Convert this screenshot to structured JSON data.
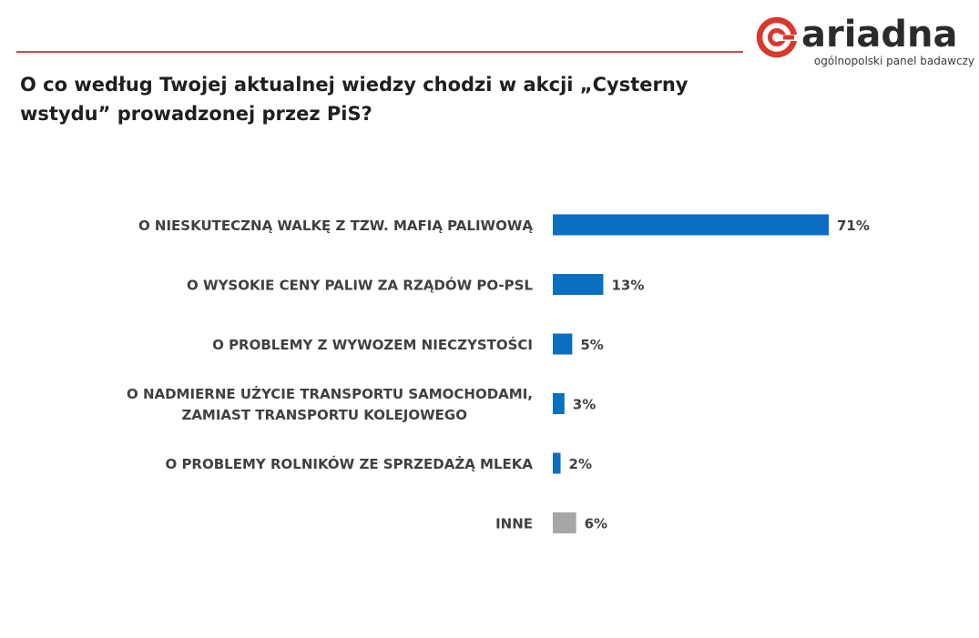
{
  "brand": {
    "name": "ariadna",
    "tagline": "ogólnopolski panel badawczy",
    "accent_color": "#d9382c",
    "rule_color": "#c0504d"
  },
  "title": "O co według Twojej aktualnej wiedzy chodzi w akcji „Cysterny wstydu” prowadzonej przez PiS?",
  "chart_data": {
    "type": "bar",
    "orientation": "horizontal",
    "title": "O co według Twojej aktualnej wiedzy chodzi w akcji „Cysterny wstydu” prowadzonej przez PiS?",
    "xlabel": "",
    "ylabel": "",
    "xlim": [
      0,
      100
    ],
    "unit": "%",
    "categories": [
      [
        "O NIESKUTECZNĄ WALKĘ Z TZW. MAFIĄ PALIWOWĄ"
      ],
      [
        "O WYSOKIE CENY PALIW ZA RZĄDÓW PO-PSL"
      ],
      [
        "O PROBLEMY Z WYWOZEM NIECZYSTOŚCI"
      ],
      [
        "O NADMIERNE UŻYCIE TRANSPORTU SAMOCHODAMI,",
        "ZAMIAST TRANSPORTU KOLEJOWEGO"
      ],
      [
        "O PROBLEMY ROLNIKÓW ZE SPRZEDAŻĄ MLEKA"
      ],
      [
        "INNE"
      ]
    ],
    "values": [
      71,
      13,
      5,
      3,
      2,
      6
    ],
    "value_labels": [
      "71%",
      "13%",
      "5%",
      "3%",
      "2%",
      "6%"
    ],
    "colors": [
      "#0a6fc2",
      "#0a6fc2",
      "#0a6fc2",
      "#0a6fc2",
      "#0a6fc2",
      "#a6a6a6"
    ],
    "grid": false,
    "legend": "none"
  }
}
